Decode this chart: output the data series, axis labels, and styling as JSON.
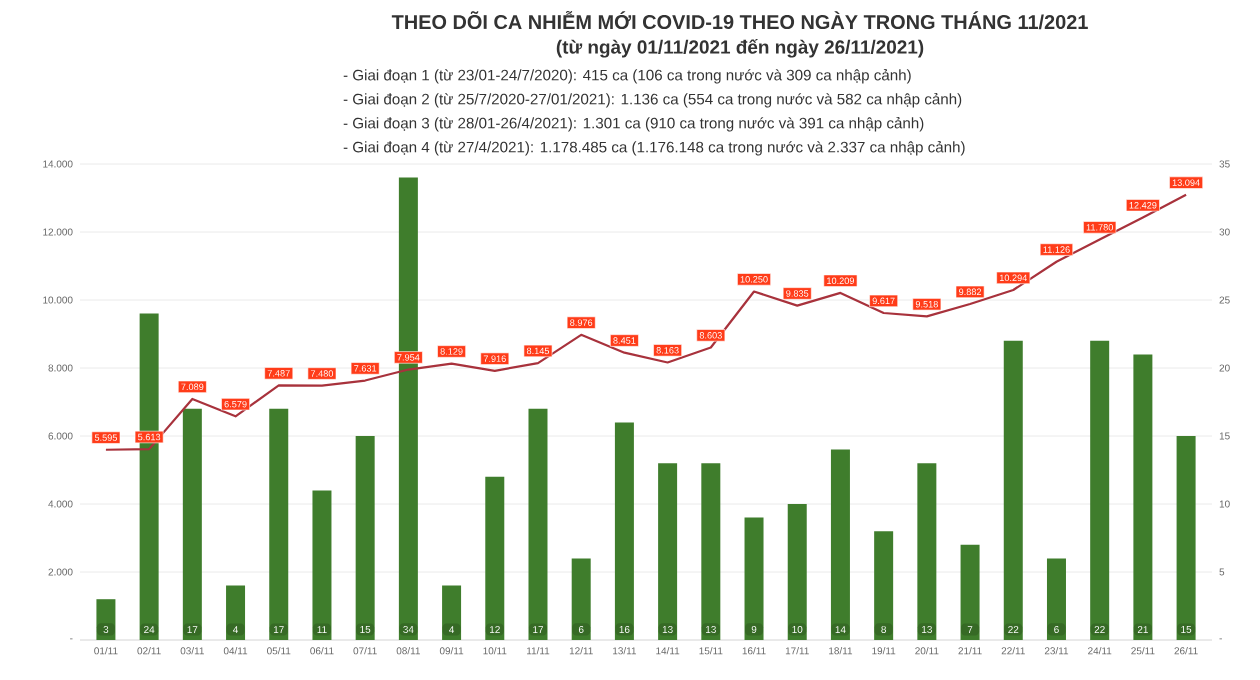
{
  "chart_data": {
    "type": "bar",
    "title": "THEO DÕI CA NHIỄM MỚI COVID-19 THEO NGÀY TRONG THÁNG 11/2021",
    "subtitle": "(từ ngày 01/11/2021 đến ngày 26/11/2021)",
    "annotations": [
      "- Giai đoạn 1 (từ 23/01-24/7/2020): 415 ca (106 ca trong nước và 309 ca nhập cảnh)",
      "- Giai đoạn 2 (từ 25/7/2020-27/01/2021): 1.136 ca (554 ca trong nước và 582 ca nhập cảnh)",
      "- Giai đoạn 3 (từ 28/01-26/4/2021): 1.301 ca (910 ca trong nước và 391 ca nhập cảnh)",
      "- Giai đoạn 4 (từ 27/4/2021): 1.178.485 ca (1.176.148 ca trong nước và 2.337 ca nhập cảnh)"
    ],
    "categories": [
      "01/11",
      "02/11",
      "03/11",
      "04/11",
      "05/11",
      "06/11",
      "07/11",
      "08/11",
      "09/11",
      "10/11",
      "11/11",
      "12/11",
      "13/11",
      "14/11",
      "15/11",
      "16/11",
      "17/11",
      "18/11",
      "19/11",
      "20/11",
      "21/11",
      "22/11",
      "23/11",
      "24/11",
      "25/11",
      "26/11"
    ],
    "series": [
      {
        "axis": "y2",
        "color": "#3f7d2c",
        "values": [
          3,
          24,
          17,
          4,
          17,
          11,
          15,
          34,
          4,
          12,
          17,
          6,
          16,
          13,
          13,
          9,
          10,
          14,
          8,
          13,
          7,
          22,
          6,
          22,
          21,
          15
        ],
        "value_labels": [
          "3",
          "24",
          "17",
          "4",
          "17",
          "11",
          "15",
          "34",
          "4",
          "12",
          "17",
          "6",
          "16",
          "13",
          "13",
          "9",
          "10",
          "14",
          "8",
          "13",
          "7",
          "22",
          "6",
          "22",
          "21",
          "15"
        ]
      },
      {
        "type": "line",
        "axis": "y",
        "color": "#a8323c",
        "values": [
          5595,
          5613,
          7089,
          6579,
          7487,
          7480,
          7631,
          7954,
          8129,
          7916,
          8145,
          8976,
          8451,
          8163,
          8603,
          10250,
          9835,
          10209,
          9617,
          9518,
          9882,
          10294,
          11126,
          11780,
          12429,
          13094
        ],
        "value_labels": [
          "5.595",
          "5.613",
          "7.089",
          "6.579",
          "7.487",
          "7.480",
          "7.631",
          "7.954",
          "8.129",
          "7.916",
          "8.145",
          "8.976",
          "8.451",
          "8.163",
          "8.603",
          "10.250",
          "9.835",
          "10.209",
          "9.617",
          "9.518",
          "9.882",
          "10.294",
          "11.126",
          "11.780",
          "12.429",
          "13.094"
        ]
      }
    ],
    "ylim": [
      0,
      14000
    ],
    "yticks": [
      {
        "value": 0,
        "label": "-"
      },
      {
        "value": 2000,
        "label": "2.000"
      },
      {
        "value": 4000,
        "label": "4.000"
      },
      {
        "value": 6000,
        "label": "6.000"
      },
      {
        "value": 8000,
        "label": "8.000"
      },
      {
        "value": 10000,
        "label": "10.000"
      },
      {
        "value": 12000,
        "label": "12.000"
      },
      {
        "value": 14000,
        "label": "14.000"
      }
    ],
    "y2lim": [
      0,
      35
    ],
    "y2ticks": [
      {
        "value": 0,
        "label": "-"
      },
      5,
      10,
      15,
      20,
      25,
      30,
      35
    ],
    "grid": "y"
  }
}
